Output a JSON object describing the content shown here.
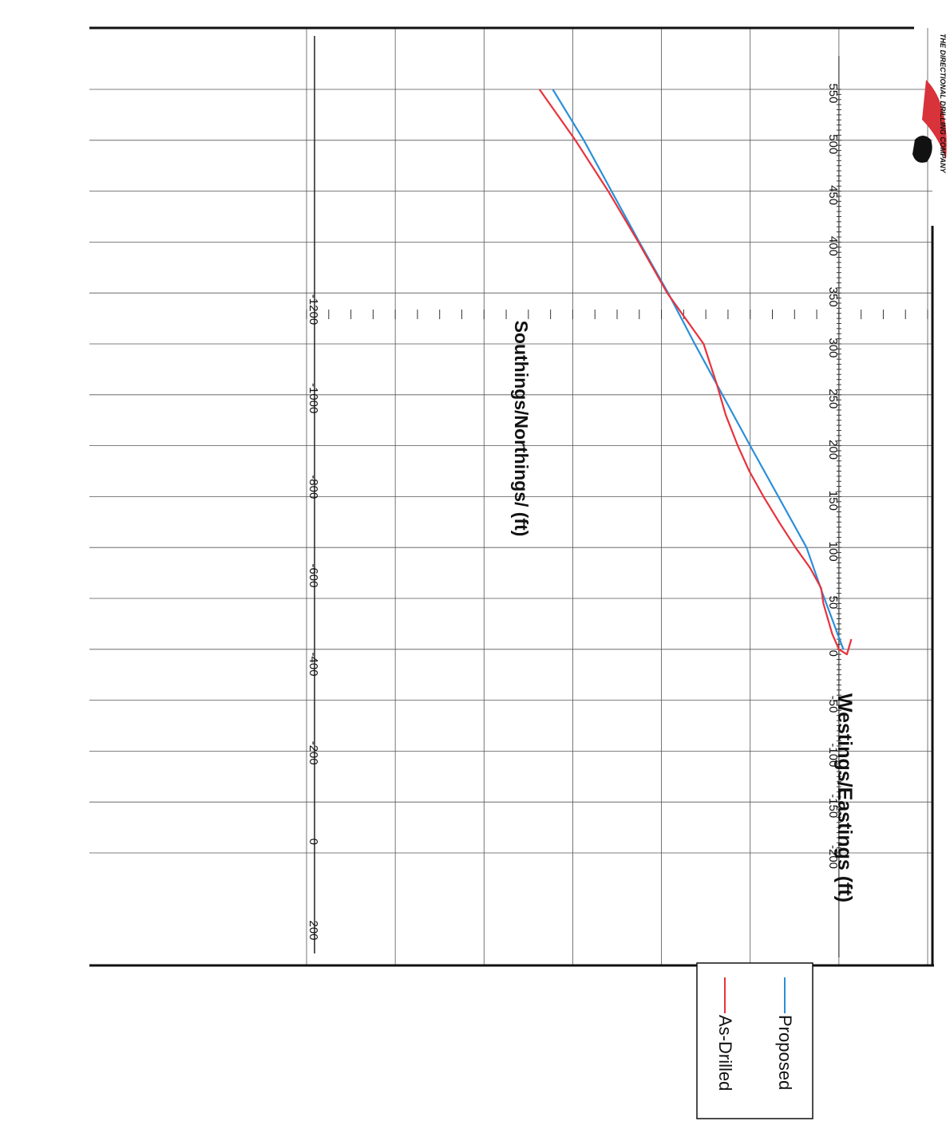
{
  "chart_data": {
    "type": "line",
    "xlabel": "Westings/Eastings  (ft)",
    "ylabel": "Southings/Northings/  (ft)",
    "x_ticks": [
      "-200",
      "-150",
      "-100",
      "-50",
      "0",
      "50",
      "100",
      "150",
      "200",
      "250",
      "300",
      "350",
      "400",
      "450",
      "500",
      "550"
    ],
    "y_ticks": [
      "-1200",
      "-1000",
      "-800",
      "-600",
      "-400",
      "-200",
      "0",
      "200"
    ],
    "xlim": [
      -200,
      550
    ],
    "ylim": [
      -1200,
      200
    ],
    "grid": true,
    "legend_position": "bottom-right",
    "series": [
      {
        "name": "Proposed",
        "color": "#2b8fd9",
        "x": [
          0,
          55,
          100,
          200,
          300,
          350,
          400,
          500,
          550
        ],
        "y": [
          10,
          -37,
          -73,
          -200,
          -325,
          -385,
          -450,
          -575,
          -645
        ]
      },
      {
        "name": "As-Drilled",
        "color": "#e8323c",
        "x": [
          10,
          -5,
          0,
          15,
          30,
          45,
          60,
          80,
          100,
          125,
          150,
          175,
          200,
          230,
          260,
          300,
          350,
          400,
          450,
          500,
          550
        ],
        "y": [
          28,
          18,
          0,
          -15,
          -25,
          -35,
          -40,
          -65,
          -98,
          -135,
          -170,
          -202,
          -228,
          -255,
          -275,
          -305,
          -387,
          -452,
          -520,
          -594,
          -675
        ]
      }
    ]
  },
  "logo": {
    "text": "THE DIRECTIONAL DRILLING COMPANY",
    "colors": {
      "swoosh": "#d8323a",
      "mark": "#111111"
    }
  }
}
